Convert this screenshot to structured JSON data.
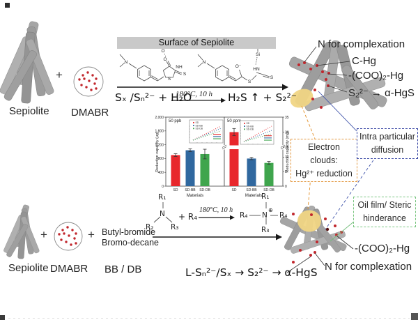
{
  "title_banner": "Surface of Sepiolite",
  "top_route": {
    "sepiolite_label": "Sepiolite",
    "dmabr_label": "DMABR",
    "plus": "+",
    "reaction_left": "Sₓ /Sₙ²⁻ + H₂O",
    "reaction_conditions": "180°C,  10 h",
    "reaction_right": "H₂S ↑ + S₂²⁻",
    "product_labels": [
      "N for complexation",
      "C-Hg",
      "-(COO)₂-Hg",
      "S₂²⁻ → α-HgS"
    ]
  },
  "callouts": {
    "electron": {
      "line1": "Electron clouds:",
      "line2": "Hg²⁺ reduction",
      "border_color": "#e2973f"
    },
    "intra": {
      "line1": "Intra particular",
      "line2": "diffusion",
      "border_color": "#3b49a6"
    },
    "oil": {
      "line1": "Oil film/ Steric",
      "line2": "hinderance",
      "border_color": "#79c57f"
    }
  },
  "bottom_route": {
    "sepiolite_label": "Sepiolite",
    "dmabr_label": "DMABR",
    "plus1": "+",
    "plus2": "+",
    "reagent_line1": "Butyl-bromide",
    "reagent_line2": "Bromo-decane",
    "bb_db_label": "BB / DB",
    "amine": {
      "r1": "R₁",
      "r2": "R₂",
      "r3": "R₃",
      "n": "N",
      "plus_r4": "+ R₄"
    },
    "conditions": "180°C, 10 h",
    "product": {
      "r1": "R₁",
      "r3": "R₃",
      "r4_left": "R₄",
      "r4_right": "R₄",
      "n": "N",
      "charge": "⊕"
    },
    "sulfide_path": "L-Sₙ²⁻/Sₓ → S₂²⁻ → α-HgS",
    "product_labels": [
      "-(COO)₂-Hg",
      "N for complexation"
    ]
  },
  "molecules": {
    "left": {
      "n": "N",
      "o_hb": "O",
      "o_carbonyl": "O",
      "nh": "NH",
      "s_ring": "S",
      "s_thione": "S"
    },
    "right": {
      "n": "N",
      "o_minus": "O⁻",
      "s_chain": "S",
      "hn": "HN",
      "s_thione": "S",
      "si": "Si"
    }
  },
  "colors": {
    "fiber_gray": "#a3a3a3",
    "dot_red": "#c1272d",
    "electron_cloud_yellow": "#f0d584",
    "bar_red": "#e8272c",
    "bar_blue": "#30689f",
    "bar_green": "#3fa54d"
  },
  "chart_data": [
    {
      "type": "bar",
      "panel_label": "50 ppb",
      "categories": [
        "SD",
        "SD-BB",
        "SD-DB"
      ],
      "values": [
        900,
        1040,
        930
      ],
      "errors": [
        40,
        40,
        140
      ],
      "bar_colors": [
        "#e8272c",
        "#30689f",
        "#3fa54d"
      ],
      "ylabel": "Reduction capacity (μg)",
      "xlabel": "Materials",
      "ylim": [
        0,
        2000
      ],
      "yticks": [
        0,
        400,
        800,
        1200,
        1600,
        2000
      ],
      "ytick_labels": [
        "0",
        "400",
        "800",
        "1,200",
        "1,600",
        "2,000"
      ],
      "tick_side": "left",
      "inset": {
        "legend": [
          "SD",
          "SD-BB",
          "SD-DB"
        ],
        "series_colors": [
          "#e8272c",
          "#30689f",
          "#3fa54d"
        ]
      }
    },
    {
      "type": "bar",
      "panel_label": "50 ppm",
      "categories": [
        "SD",
        "SD-BB",
        "SD-DB"
      ],
      "values": [
        30,
        9.5,
        8
      ],
      "errors": [
        1.2,
        0.4,
        0.5
      ],
      "bar_colors": [
        "#e8272c",
        "#30689f",
        "#3fa54d"
      ],
      "ylabel": "Reduction capacity (mg)",
      "xlabel": "Materials",
      "ylim": [
        0,
        35
      ],
      "axis_break": [
        12,
        25
      ],
      "yticks": [
        0,
        5,
        10,
        25,
        30,
        35
      ],
      "ytick_labels": [
        "0",
        "5",
        "10",
        "25",
        "30",
        "35"
      ],
      "tick_side": "right",
      "inset": {
        "legend": [
          "SD",
          "SD-BB",
          "SD-DB"
        ],
        "series_colors": [
          "#e8272c",
          "#30689f",
          "#3fa54d"
        ]
      }
    }
  ]
}
